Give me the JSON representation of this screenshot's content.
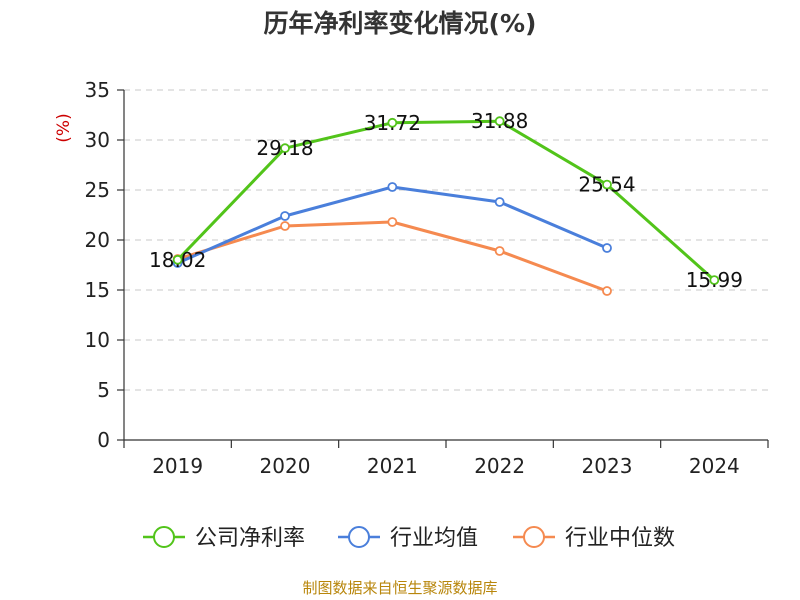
{
  "chart_data": {
    "type": "line",
    "title": "历年净利率变化情况(%)",
    "ylabel": "(%)",
    "xlabel": "",
    "categories": [
      "2019",
      "2020",
      "2021",
      "2022",
      "2023",
      "2024"
    ],
    "ylim": [
      0,
      35
    ],
    "yticks": [
      0,
      5,
      10,
      15,
      20,
      25,
      30,
      35
    ],
    "grid": true,
    "legend_position": "bottom",
    "series": [
      {
        "name": "公司净利率",
        "color": "#52c41a",
        "values": [
          18.02,
          29.18,
          31.72,
          31.88,
          25.54,
          15.99
        ],
        "show_labels": true
      },
      {
        "name": "行业均值",
        "color": "#4a7fdb",
        "values": [
          17.7,
          22.4,
          25.3,
          23.8,
          19.2,
          null
        ],
        "show_labels": false
      },
      {
        "name": "行业中位数",
        "color": "#f58a50",
        "values": [
          18.1,
          21.4,
          21.8,
          18.9,
          14.9,
          null
        ],
        "show_labels": false
      }
    ]
  },
  "footer": {
    "source": "制图数据来自恒生聚源数据库"
  }
}
